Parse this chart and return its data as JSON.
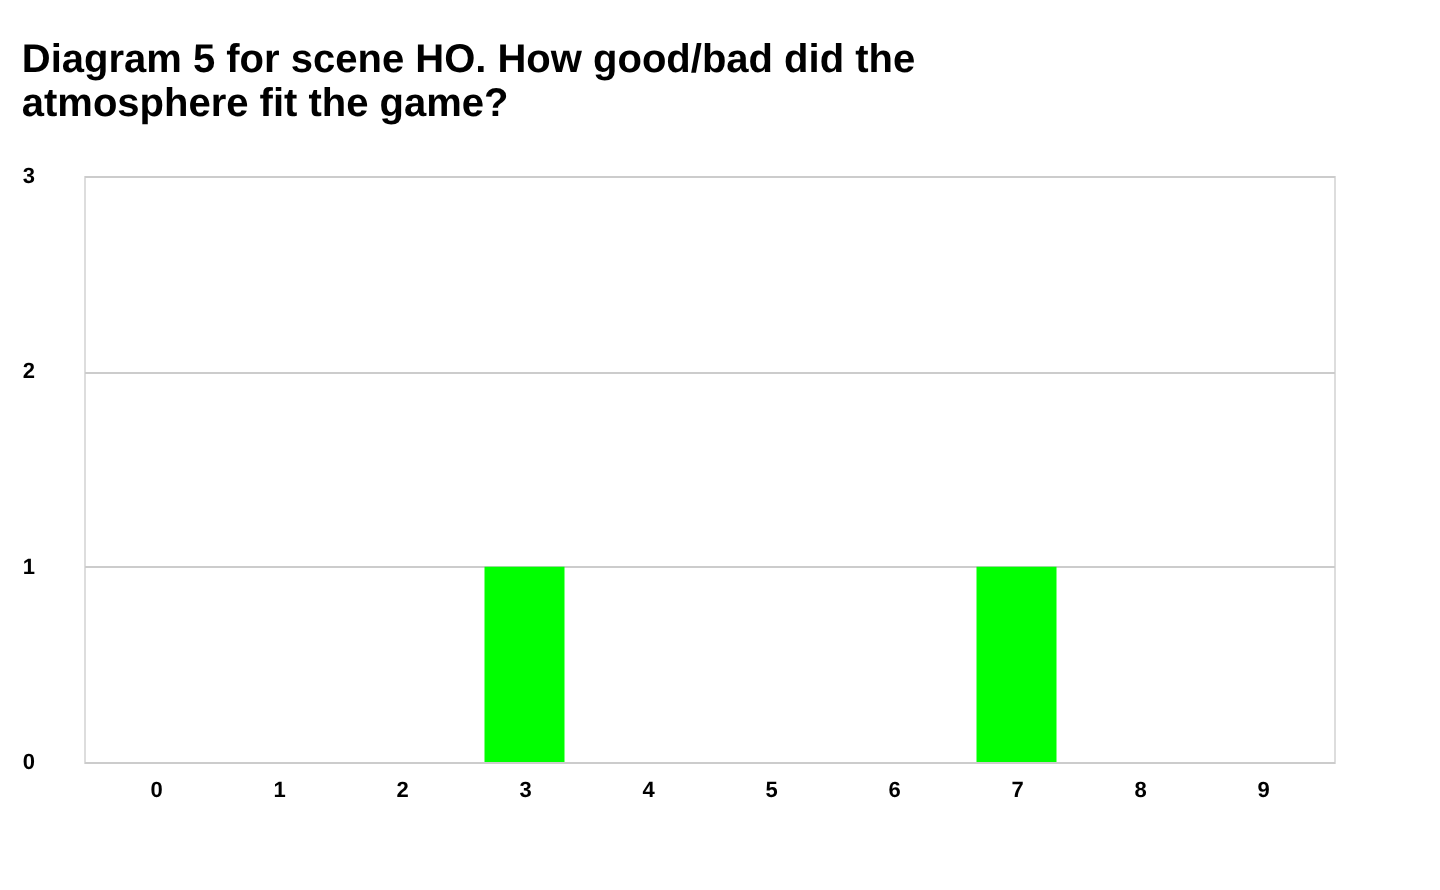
{
  "chart_data": {
    "type": "bar",
    "title": "Diagram 5 for scene HO. How good/bad did the atmosphere fit the game?",
    "categories": [
      "0",
      "1",
      "2",
      "3",
      "4",
      "5",
      "6",
      "7",
      "8",
      "9"
    ],
    "values": [
      0,
      0,
      0,
      1,
      0,
      0,
      0,
      1,
      0,
      0
    ],
    "color": "#00ff00",
    "ylim": [
      0,
      3
    ],
    "yticks": [
      0,
      1,
      2,
      3
    ],
    "grid": "y"
  }
}
